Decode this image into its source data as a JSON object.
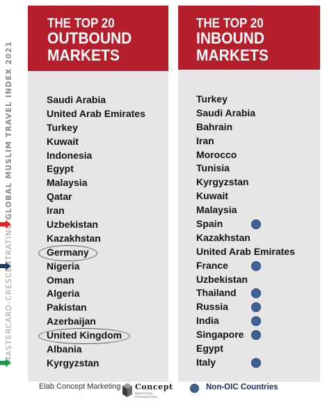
{
  "side_label": {
    "prefix": "MASTERCARD-CRESCENTRATING ",
    "bold": "GLOBAL MUSLIM TRAVEL INDEX 2021"
  },
  "outbound": {
    "title_line1": "THE TOP 20",
    "title_line2": "OUTBOUND",
    "title_line3": "MARKETS",
    "items": [
      "Saudi Arabia",
      "United Arab Emirates",
      "Turkey",
      "Kuwait",
      "Indonesia",
      "Egypt",
      "Malaysia",
      "Qatar",
      "Iran",
      "Uzbekistan",
      "Kazakhstan",
      "Germany",
      "Nigeria",
      "Oman",
      "Algeria",
      "Pakistan",
      "Azerbaijan",
      "United Kingdom",
      "Albania",
      "Kyrgyzstan"
    ],
    "circled": [
      "Germany",
      "United Kingdom"
    ]
  },
  "inbound": {
    "title_line1": "THE TOP 20",
    "title_line2": "INBOUND",
    "title_line3": "MARKETS",
    "items": [
      "Turkey",
      "Saudi Arabia",
      "Bahrain",
      "Iran",
      "Morocco",
      "Tunisia",
      "Kyrgyzstan",
      "Kuwait",
      "Malaysia",
      "Spain",
      "Kazakhstan",
      "United Arab Emirates",
      "France",
      "Uzbekistan",
      "Thailand",
      "Russia",
      "India",
      "Singapore",
      "Egypt",
      "Italy"
    ],
    "non_oic_marked": [
      "Spain",
      "France",
      "Thailand",
      "Russia",
      "India",
      "Singapore",
      "Italy"
    ],
    "arrows": [
      {
        "country": "Spain",
        "color": "#e0262b"
      },
      {
        "country": "France",
        "color": "#1f3d66"
      },
      {
        "country": "Italy",
        "color": "#1f9a48"
      }
    ]
  },
  "footer": {
    "source": "Elab Concept Marketing",
    "logo_name": "Concept",
    "logo_sub": "MARKETING PROMOCIONAL",
    "legend_label": "Non-OIC Countries"
  },
  "colors": {
    "header_red": "#b51e2b",
    "panel_gray": "#e6e6e6",
    "dot_blue": "#3f6296"
  }
}
